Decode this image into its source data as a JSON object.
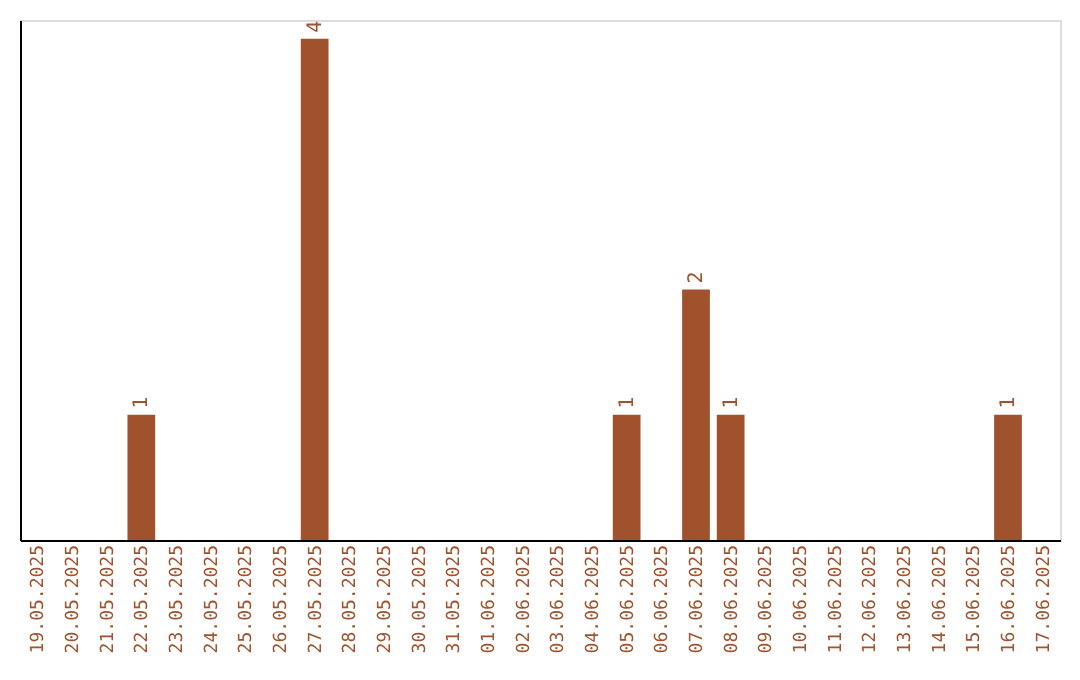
{
  "chart_data": {
    "type": "bar",
    "categories": [
      "19.05.2025",
      "20.05.2025",
      "21.05.2025",
      "22.05.2025",
      "23.05.2025",
      "24.05.2025",
      "25.05.2025",
      "26.05.2025",
      "27.05.2025",
      "28.05.2025",
      "29.05.2025",
      "30.05.2025",
      "31.05.2025",
      "01.06.2025",
      "02.06.2025",
      "03.06.2025",
      "04.06.2025",
      "05.06.2025",
      "06.06.2025",
      "07.06.2025",
      "08.06.2025",
      "09.06.2025",
      "10.06.2025",
      "11.06.2025",
      "12.06.2025",
      "13.06.2025",
      "14.06.2025",
      "15.06.2025",
      "16.06.2025",
      "17.06.2025"
    ],
    "values": [
      0,
      0,
      0,
      1,
      0,
      0,
      0,
      0,
      4,
      0,
      0,
      0,
      0,
      0,
      0,
      0,
      0,
      1,
      0,
      2,
      1,
      0,
      0,
      0,
      0,
      0,
      0,
      0,
      1,
      0
    ],
    "value_labels": [
      null,
      null,
      null,
      "1",
      null,
      null,
      null,
      null,
      "4",
      null,
      null,
      null,
      null,
      null,
      null,
      null,
      null,
      "1",
      null,
      "2",
      "1",
      null,
      null,
      null,
      null,
      null,
      null,
      null,
      "1",
      null
    ],
    "color": "#a0522d",
    "ylim": [
      0,
      4.15
    ],
    "tick_labels": "x",
    "grid": false
  }
}
